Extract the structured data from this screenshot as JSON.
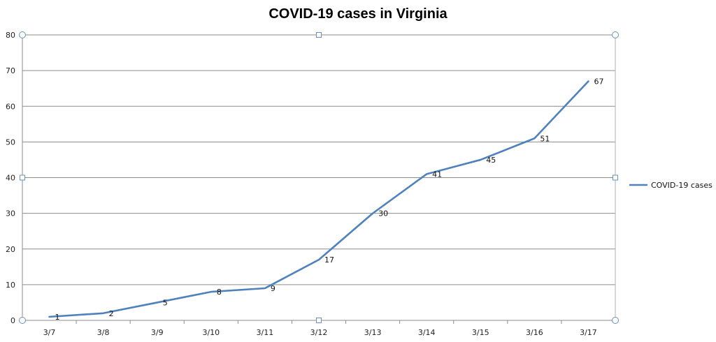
{
  "chart_data": {
    "type": "line",
    "title": "COVID-19 cases in Virginia",
    "xlabel": "",
    "ylabel": "",
    "categories": [
      "3/7",
      "3/8",
      "3/9",
      "3/10",
      "3/11",
      "3/12",
      "3/13",
      "3/14",
      "3/15",
      "3/16",
      "3/17"
    ],
    "series": [
      {
        "name": "COVID-19 cases",
        "values": [
          1,
          2,
          5,
          8,
          9,
          17,
          30,
          41,
          45,
          51,
          67
        ]
      }
    ],
    "ylim": [
      0,
      80
    ],
    "yticks": [
      0,
      10,
      20,
      30,
      40,
      50,
      60,
      70,
      80
    ],
    "grid": true,
    "legend": "right",
    "colors": {
      "series": "#4f81bd",
      "grid": "#8c8c8c",
      "handle": "#6a8fc0"
    }
  }
}
